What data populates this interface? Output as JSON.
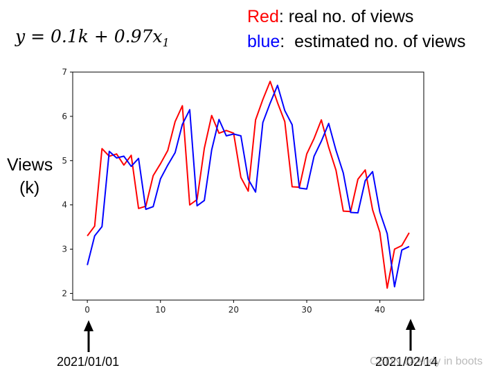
{
  "formula": "y = 0.1k + 0.97x",
  "formula_subscript": "1",
  "legend": {
    "red_word": "Red",
    "red_rest": ": real no. of views",
    "blue_word": "blue",
    "blue_rest": ":  estimated no. of views"
  },
  "colors": {
    "real": "#ff0000",
    "estimated": "#0000ff"
  },
  "ylabel_line1": "Views",
  "ylabel_line2": "(k)",
  "date_start": "2021/01/01",
  "date_end": "2021/02/14",
  "watermark": "CSDN @Andy in boots",
  "chart_data": {
    "type": "line",
    "xlim": [
      -2,
      46
    ],
    "ylim": [
      1.85,
      7.0
    ],
    "xticks": [
      0,
      10,
      20,
      30,
      40
    ],
    "yticks": [
      2,
      3,
      4,
      5,
      6,
      7
    ],
    "grid": false,
    "series": [
      {
        "color": "#ff0000",
        "x": [
          0,
          1,
          2,
          3,
          4,
          5,
          6,
          7,
          8,
          9,
          10,
          11,
          12,
          13,
          14,
          15,
          16,
          17,
          18,
          19,
          20,
          21,
          22,
          23,
          24,
          25,
          26,
          27,
          28,
          29,
          30,
          31,
          32,
          33,
          34,
          35,
          36,
          37,
          38,
          39,
          40,
          41,
          42,
          43,
          44
        ],
        "values": [
          3.3,
          3.52,
          5.27,
          5.1,
          5.15,
          4.9,
          5.12,
          3.92,
          3.97,
          4.66,
          4.93,
          5.23,
          5.88,
          6.24,
          4.0,
          4.12,
          5.28,
          6.02,
          5.62,
          5.68,
          5.62,
          4.62,
          4.31,
          5.92,
          6.38,
          6.79,
          6.31,
          5.88,
          4.41,
          4.4,
          5.15,
          5.5,
          5.92,
          5.3,
          4.78,
          3.86,
          3.85,
          4.58,
          4.79,
          3.89,
          3.38,
          2.12,
          3.0,
          3.08,
          3.37
        ]
      },
      {
        "color": "#0000ff",
        "x": [
          0,
          1,
          2,
          3,
          4,
          5,
          6,
          7,
          8,
          9,
          10,
          11,
          12,
          13,
          14,
          15,
          16,
          17,
          18,
          19,
          20,
          21,
          22,
          23,
          24,
          25,
          26,
          27,
          28,
          29,
          30,
          31,
          32,
          33,
          34,
          35,
          36,
          37,
          38,
          39,
          40,
          41,
          42,
          43,
          44
        ],
        "values": [
          2.64,
          3.3,
          3.51,
          5.21,
          5.06,
          5.1,
          4.87,
          5.05,
          3.9,
          3.96,
          4.59,
          4.9,
          5.18,
          5.82,
          6.15,
          3.98,
          4.1,
          5.24,
          5.93,
          5.56,
          5.6,
          5.56,
          4.58,
          4.29,
          5.86,
          6.3,
          6.7,
          6.13,
          5.81,
          4.38,
          4.36,
          5.1,
          5.44,
          5.84,
          5.23,
          4.72,
          3.83,
          3.82,
          4.55,
          4.75,
          3.84,
          3.35,
          2.15,
          2.98,
          3.06
        ]
      }
    ]
  }
}
